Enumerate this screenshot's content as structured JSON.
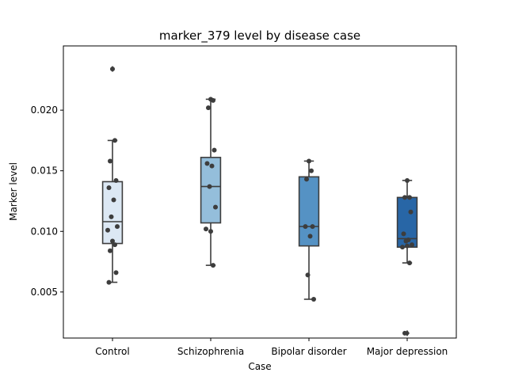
{
  "chart_data": {
    "type": "box",
    "title": "marker_379 level by disease case",
    "xlabel": "Case",
    "ylabel": "Marker level",
    "ylim": [
      0.0012,
      0.0253
    ],
    "yticks": [
      0.005,
      0.01,
      0.015,
      0.02
    ],
    "ytick_labels": [
      "0.005",
      "0.010",
      "0.015",
      "0.020"
    ],
    "grid": false,
    "legend": "none",
    "categories": [
      "Control",
      "Schizophrenia",
      "Bipolar disorder",
      "Major depression"
    ],
    "colors": [
      "#dce8f4",
      "#94bedb",
      "#5592c4",
      "#2866a6"
    ],
    "boxes": [
      {
        "q1": 0.009,
        "median": 0.0108,
        "q3": 0.0141,
        "whisker_low": 0.0058,
        "whisker_high": 0.0175,
        "outliers": [
          0.0234
        ]
      },
      {
        "q1": 0.0107,
        "median": 0.0137,
        "q3": 0.0161,
        "whisker_low": 0.0072,
        "whisker_high": 0.0209,
        "outliers": []
      },
      {
        "q1": 0.0088,
        "median": 0.0104,
        "q3": 0.0145,
        "whisker_low": 0.0044,
        "whisker_high": 0.0158,
        "outliers": []
      },
      {
        "q1": 0.0087,
        "median": 0.0094,
        "q3": 0.0128,
        "whisker_low": 0.0074,
        "whisker_high": 0.0142,
        "outliers": [
          0.0016
        ]
      }
    ],
    "points": [
      [
        0.0234,
        0.0175,
        0.0158,
        0.0142,
        0.0136,
        0.0126,
        0.0112,
        0.0104,
        0.0101,
        0.0092,
        0.0089,
        0.0084,
        0.0066,
        0.0058
      ],
      [
        0.0209,
        0.0208,
        0.0202,
        0.0167,
        0.0156,
        0.0154,
        0.0137,
        0.012,
        0.0102,
        0.01,
        0.0072
      ],
      [
        0.0158,
        0.015,
        0.0143,
        0.0104,
        0.0104,
        0.0096,
        0.0064,
        0.0044
      ],
      [
        0.0142,
        0.0128,
        0.0128,
        0.0116,
        0.0098,
        0.0093,
        0.0092,
        0.0089,
        0.0087,
        0.0088,
        0.0074,
        0.0016
      ]
    ],
    "point_color": "#3d3d3d",
    "line_color": "#3d3d3d"
  }
}
